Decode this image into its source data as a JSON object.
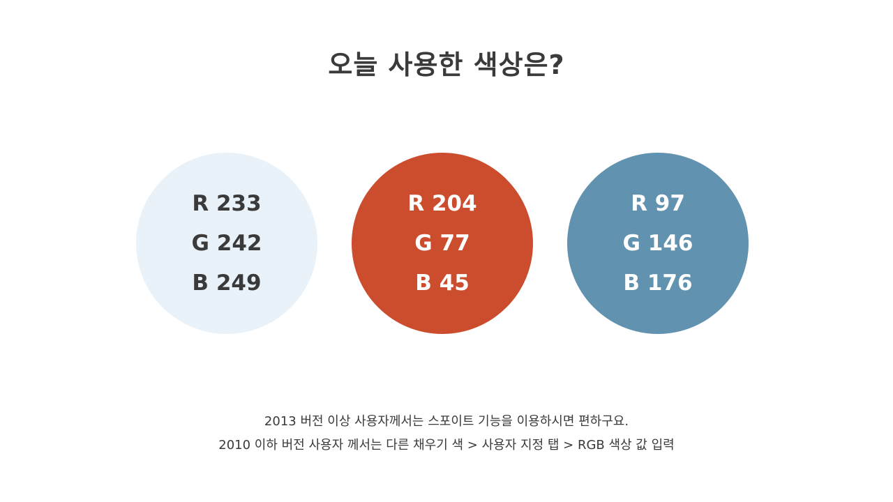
{
  "title": "오늘 사용한 색상은?",
  "swatches": [
    {
      "fill": "#E9F2F9",
      "text_color": "#3A3A3A",
      "r_label": "R 233",
      "g_label": "G 242",
      "b_label": "B 249"
    },
    {
      "fill": "#CC4D2D",
      "text_color": "#FFFFFF",
      "r_label": "R 204",
      "g_label": "G 77",
      "b_label": "B 45"
    },
    {
      "fill": "#6192B0",
      "text_color": "#FFFFFF",
      "r_label": "R 97",
      "g_label": "G 146",
      "b_label": "B 176"
    }
  ],
  "notes": {
    "line1": "2013 버전 이상 사용자께서는 스포이트 기능을 이용하시면 편하구요.",
    "line2": "2010 이하 버전 사용자 께서는 다른 채우기 색 > 사용자 지정 탭 > RGB 색상 값 입력"
  }
}
